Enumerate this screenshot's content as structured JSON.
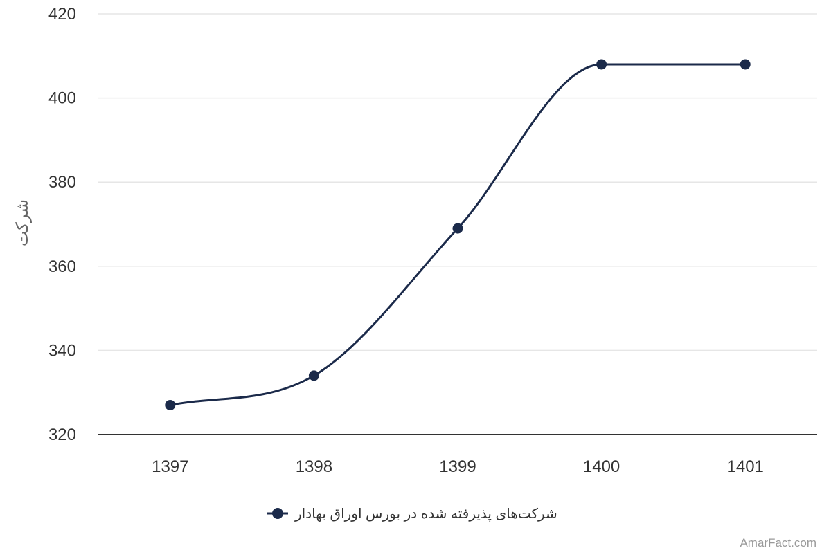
{
  "chart_data": {
    "type": "line",
    "curve": "smooth",
    "categories": [
      "1397",
      "1398",
      "1399",
      "1400",
      "1401"
    ],
    "series": [
      {
        "name": "شرکت‌های پذیرفته شده در بورس اوراق بهادار",
        "values": [
          327,
          334,
          369,
          408,
          408
        ],
        "color": "#1b2a4a"
      }
    ],
    "ylabel": "شرکت",
    "xlabel": "",
    "ylim": [
      320,
      420
    ],
    "yticks": [
      320,
      340,
      360,
      380,
      400,
      420
    ],
    "grid": true,
    "legend_position": "bottom-center"
  },
  "credit": "AmarFact.com",
  "colors": {
    "grid": "#e6e6e6",
    "axis": "#333333",
    "series": "#1b2a4a"
  }
}
